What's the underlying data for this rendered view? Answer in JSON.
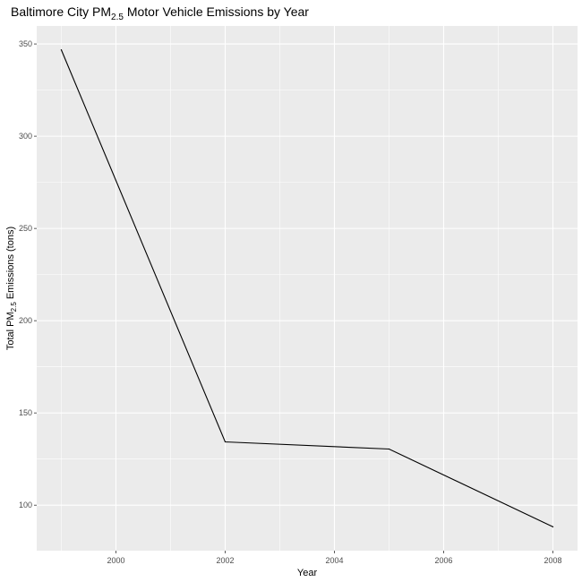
{
  "chart_data": {
    "type": "line",
    "title": {
      "prefix": "Baltimore City PM",
      "subscript": "2.5",
      "suffix": " Motor Vehicle Emissions by Year"
    },
    "xlabel": "Year",
    "ylabel": {
      "prefix": "Total PM",
      "subscript": "2.5",
      "suffix": " Emissions (tons)"
    },
    "x": [
      1999,
      2002,
      2005,
      2008
    ],
    "y": [
      346.82,
      134.31,
      130.43,
      88.28
    ],
    "xlim": [
      1998.55,
      2008.45
    ],
    "ylim": [
      75.35,
      359.75
    ],
    "x_ticks": [
      2000,
      2002,
      2004,
      2006,
      2008
    ],
    "x_minor": [
      1999,
      2001,
      2003,
      2005,
      2007
    ],
    "y_ticks": [
      100,
      150,
      200,
      250,
      300,
      350
    ],
    "y_minor": [
      125,
      175,
      225,
      275,
      325
    ],
    "grid": true,
    "colors": {
      "panel": "#ebebeb",
      "grid": "#ffffff",
      "line": "#000000",
      "tick_label": "#4d4d4d"
    }
  }
}
